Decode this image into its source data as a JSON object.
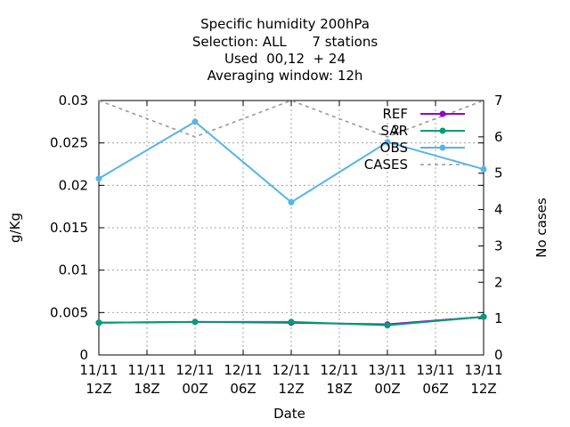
{
  "chart_data": {
    "type": "line",
    "title_lines": [
      "Specific humidity 200hPa",
      "Selection: ALL      7 stations",
      "Used  00,12  + 24",
      "Averaging window: 12h"
    ],
    "xlabel": "Date",
    "ylabel": "g/Kg",
    "y2label": "No cases",
    "x_ticks": [
      {
        "top": "11/11",
        "bottom": "12Z"
      },
      {
        "top": "11/11",
        "bottom": "18Z"
      },
      {
        "top": "12/11",
        "bottom": "00Z"
      },
      {
        "top": "12/11",
        "bottom": "06Z"
      },
      {
        "top": "12/11",
        "bottom": "12Z"
      },
      {
        "top": "12/11",
        "bottom": "18Z"
      },
      {
        "top": "13/11",
        "bottom": "00Z"
      },
      {
        "top": "13/11",
        "bottom": "06Z"
      },
      {
        "top": "13/11",
        "bottom": "12Z"
      }
    ],
    "xlim": [
      0,
      8
    ],
    "ylim": [
      0,
      0.03
    ],
    "y_ticks": [
      "0",
      "0.005",
      "0.01",
      "0.015",
      "0.02",
      "0.025",
      "0.03"
    ],
    "y_tick_values": [
      0,
      0.005,
      0.01,
      0.015,
      0.02,
      0.025,
      0.03
    ],
    "y2lim": [
      0,
      7
    ],
    "y2_ticks": [
      "0",
      "1",
      "2",
      "3",
      "4",
      "5",
      "6",
      "7"
    ],
    "y2_tick_values": [
      0,
      1,
      2,
      3,
      4,
      5,
      6,
      7
    ],
    "grid": true,
    "legend_position": "top-right",
    "series": [
      {
        "name": "REF",
        "axis": "y",
        "style": "line-points",
        "color": "#9400d3",
        "x": [
          0,
          2,
          4,
          6,
          8
        ],
        "y": [
          0.0038,
          0.0039,
          0.0038,
          0.0036,
          0.0045
        ]
      },
      {
        "name": "SAR",
        "axis": "y",
        "style": "line-points",
        "color": "#009e73",
        "x": [
          0,
          2,
          4,
          6,
          8
        ],
        "y": [
          0.0038,
          0.0039,
          0.0039,
          0.0035,
          0.0045
        ]
      },
      {
        "name": "OBS",
        "axis": "y",
        "style": "line-points",
        "color": "#56b4e9",
        "x": [
          0,
          2,
          4,
          6,
          8
        ],
        "y": [
          0.0208,
          0.0275,
          0.018,
          0.0251,
          0.0219
        ]
      },
      {
        "name": "CASES",
        "axis": "y2",
        "style": "dashed",
        "color": "#999999",
        "x": [
          0,
          2,
          4,
          6,
          8
        ],
        "y": [
          7,
          6,
          7,
          6,
          7
        ]
      }
    ],
    "annotations": [
      {
        "text": "2",
        "x": 6.1,
        "y": 0.0266
      }
    ]
  }
}
